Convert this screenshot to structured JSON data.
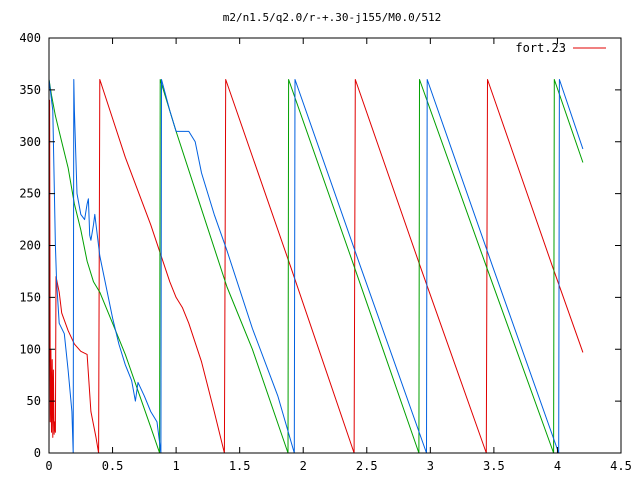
{
  "chart_data": {
    "type": "line",
    "title": "m2/n1.5/q2.0/r-+.30-j155/M0.0/512",
    "xlabel": "",
    "ylabel": "",
    "xlim": [
      0,
      4.5
    ],
    "ylim": [
      0,
      400
    ],
    "x_ticks": [
      0,
      0.5,
      1,
      1.5,
      2,
      2.5,
      3,
      3.5,
      4,
      4.5
    ],
    "x_tick_labels": [
      "0",
      "0.5",
      "1",
      "1.5",
      "2",
      "2.5",
      "3",
      "3.5",
      "4",
      "4.5"
    ],
    "y_ticks": [
      0,
      50,
      100,
      150,
      200,
      250,
      300,
      350,
      400
    ],
    "y_tick_labels": [
      "0",
      "50",
      "100",
      "150",
      "200",
      "250",
      "300",
      "350",
      "400"
    ],
    "grid": false,
    "legend": {
      "placement": "top-right",
      "entries": [
        "fort.23"
      ]
    },
    "series": [
      {
        "name": "fort.23",
        "color": "#e00000",
        "points": [
          [
            0.0,
            0
          ],
          [
            0.005,
            340
          ],
          [
            0.01,
            30
          ],
          [
            0.015,
            100
          ],
          [
            0.02,
            20
          ],
          [
            0.025,
            90
          ],
          [
            0.03,
            15
          ],
          [
            0.035,
            80
          ],
          [
            0.04,
            18
          ],
          [
            0.045,
            30
          ],
          [
            0.05,
            20
          ],
          [
            0.055,
            170
          ],
          [
            0.08,
            155
          ],
          [
            0.1,
            135
          ],
          [
            0.15,
            118
          ],
          [
            0.2,
            105
          ],
          [
            0.25,
            98
          ],
          [
            0.3,
            95
          ],
          [
            0.33,
            40
          ],
          [
            0.37,
            15
          ],
          [
            0.39,
            0
          ],
          [
            0.4,
            360
          ],
          [
            0.6,
            285
          ],
          [
            0.8,
            220
          ],
          [
            0.95,
            165
          ],
          [
            1.0,
            150
          ],
          [
            1.05,
            140
          ],
          [
            1.1,
            125
          ],
          [
            1.2,
            88
          ],
          [
            1.3,
            40
          ],
          [
            1.38,
            0
          ],
          [
            1.39,
            360
          ],
          [
            1.9,
            180
          ],
          [
            2.4,
            0
          ],
          [
            2.41,
            360
          ],
          [
            2.92,
            180
          ],
          [
            3.44,
            0
          ],
          [
            3.45,
            360
          ],
          [
            3.96,
            180
          ],
          [
            4.2,
            97
          ]
        ]
      },
      {
        "color": "#00a000",
        "points": [
          [
            0.0,
            360
          ],
          [
            0.02,
            345
          ],
          [
            0.05,
            325
          ],
          [
            0.1,
            300
          ],
          [
            0.15,
            275
          ],
          [
            0.2,
            240
          ],
          [
            0.25,
            215
          ],
          [
            0.3,
            185
          ],
          [
            0.35,
            165
          ],
          [
            0.4,
            155
          ],
          [
            0.5,
            125
          ],
          [
            0.6,
            95
          ],
          [
            0.7,
            60
          ],
          [
            0.8,
            25
          ],
          [
            0.87,
            0
          ],
          [
            0.875,
            360
          ],
          [
            1.0,
            310
          ],
          [
            1.2,
            235
          ],
          [
            1.4,
            160
          ],
          [
            1.6,
            100
          ],
          [
            1.88,
            0
          ],
          [
            1.885,
            360
          ],
          [
            2.4,
            180
          ],
          [
            2.91,
            0
          ],
          [
            2.915,
            360
          ],
          [
            3.44,
            180
          ],
          [
            3.97,
            0
          ],
          [
            3.975,
            360
          ],
          [
            4.2,
            280
          ]
        ]
      },
      {
        "color": "#0060e0",
        "points": [
          [
            0.0,
            360
          ],
          [
            0.03,
            330
          ],
          [
            0.05,
            200
          ],
          [
            0.06,
            165
          ],
          [
            0.08,
            125
          ],
          [
            0.12,
            115
          ],
          [
            0.15,
            80
          ],
          [
            0.18,
            40
          ],
          [
            0.19,
            0
          ],
          [
            0.195,
            360
          ],
          [
            0.2,
            330
          ],
          [
            0.22,
            250
          ],
          [
            0.25,
            230
          ],
          [
            0.28,
            225
          ],
          [
            0.3,
            240
          ],
          [
            0.31,
            245
          ],
          [
            0.32,
            210
          ],
          [
            0.33,
            205
          ],
          [
            0.35,
            220
          ],
          [
            0.36,
            230
          ],
          [
            0.4,
            190
          ],
          [
            0.45,
            160
          ],
          [
            0.5,
            130
          ],
          [
            0.55,
            105
          ],
          [
            0.6,
            85
          ],
          [
            0.65,
            70
          ],
          [
            0.68,
            50
          ],
          [
            0.7,
            68
          ],
          [
            0.75,
            55
          ],
          [
            0.8,
            40
          ],
          [
            0.85,
            30
          ],
          [
            0.88,
            0
          ],
          [
            0.885,
            360
          ],
          [
            0.95,
            330
          ],
          [
            1.0,
            310
          ],
          [
            1.1,
            310
          ],
          [
            1.15,
            300
          ],
          [
            1.2,
            270
          ],
          [
            1.3,
            230
          ],
          [
            1.4,
            195
          ],
          [
            1.6,
            120
          ],
          [
            1.8,
            55
          ],
          [
            1.93,
            0
          ],
          [
            1.935,
            360
          ],
          [
            2.45,
            180
          ],
          [
            2.97,
            0
          ],
          [
            2.975,
            360
          ],
          [
            3.49,
            180
          ],
          [
            4.01,
            0
          ],
          [
            4.015,
            360
          ],
          [
            4.2,
            293
          ]
        ]
      }
    ]
  }
}
